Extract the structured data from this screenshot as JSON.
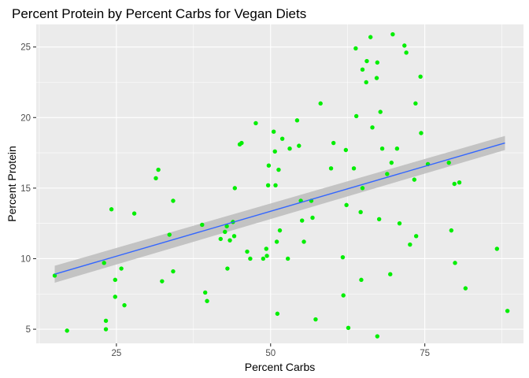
{
  "chart_data": {
    "type": "scatter",
    "title": "Percent Protein by Percent Carbs for Vegan Diets",
    "xlabel": "Percent Carbs",
    "ylabel": "Percent Protein",
    "xlim": [
      12.0,
      91.0
    ],
    "ylim": [
      4.0,
      26.6
    ],
    "xticks": [
      25,
      50,
      75
    ],
    "yticks": [
      5,
      10,
      15,
      20,
      25
    ],
    "grid": true,
    "legend": "none",
    "point_color": "#00ee00",
    "trend_color": "#3366ff",
    "band_color": "#bcbcbc",
    "panel_color": "#ebebeb",
    "trend": {
      "x": [
        15.0,
        88.0
      ],
      "y": [
        8.9,
        18.2
      ],
      "y_lower": [
        8.3,
        17.7
      ],
      "y_upper": [
        9.5,
        18.7
      ]
    },
    "points": [
      [
        15.0,
        8.8
      ],
      [
        17.0,
        4.9
      ],
      [
        23.0,
        9.7
      ],
      [
        23.3,
        5.6
      ],
      [
        23.3,
        5.0
      ],
      [
        24.2,
        13.5
      ],
      [
        24.8,
        8.5
      ],
      [
        24.8,
        7.3
      ],
      [
        25.8,
        9.3
      ],
      [
        26.3,
        6.7
      ],
      [
        27.9,
        13.2
      ],
      [
        31.4,
        15.7
      ],
      [
        31.8,
        16.3
      ],
      [
        32.4,
        8.4
      ],
      [
        33.6,
        11.7
      ],
      [
        34.2,
        14.1
      ],
      [
        34.2,
        9.1
      ],
      [
        38.9,
        12.4
      ],
      [
        39.4,
        7.6
      ],
      [
        39.7,
        7.0
      ],
      [
        41.9,
        11.4
      ],
      [
        42.6,
        11.9
      ],
      [
        42.9,
        12.3
      ],
      [
        43.0,
        9.3
      ],
      [
        43.4,
        11.3
      ],
      [
        43.9,
        12.6
      ],
      [
        44.1,
        11.6
      ],
      [
        44.2,
        15.0
      ],
      [
        45.0,
        18.1
      ],
      [
        45.3,
        18.2
      ],
      [
        46.2,
        10.5
      ],
      [
        46.7,
        10.0
      ],
      [
        47.6,
        19.6
      ],
      [
        48.8,
        10.0
      ],
      [
        49.3,
        10.7
      ],
      [
        49.4,
        10.2
      ],
      [
        49.6,
        15.2
      ],
      [
        49.7,
        16.6
      ],
      [
        50.5,
        19.0
      ],
      [
        50.7,
        17.6
      ],
      [
        50.8,
        15.2
      ],
      [
        51.0,
        11.2
      ],
      [
        51.1,
        6.1
      ],
      [
        51.3,
        16.3
      ],
      [
        51.5,
        12.0
      ],
      [
        51.9,
        18.5
      ],
      [
        52.8,
        10.0
      ],
      [
        53.1,
        17.8
      ],
      [
        54.3,
        19.8
      ],
      [
        54.6,
        18.0
      ],
      [
        54.9,
        14.1
      ],
      [
        55.1,
        12.7
      ],
      [
        55.4,
        11.2
      ],
      [
        56.6,
        14.1
      ],
      [
        56.8,
        12.9
      ],
      [
        57.3,
        5.7
      ],
      [
        58.1,
        21.0
      ],
      [
        59.8,
        16.4
      ],
      [
        60.2,
        18.2
      ],
      [
        61.7,
        10.1
      ],
      [
        61.8,
        7.4
      ],
      [
        62.2,
        17.7
      ],
      [
        62.3,
        13.8
      ],
      [
        62.6,
        5.1
      ],
      [
        63.5,
        16.4
      ],
      [
        63.8,
        24.9
      ],
      [
        63.9,
        20.1
      ],
      [
        64.6,
        13.3
      ],
      [
        64.7,
        8.5
      ],
      [
        64.9,
        23.4
      ],
      [
        64.9,
        15.0
      ],
      [
        65.5,
        22.5
      ],
      [
        65.6,
        24.0
      ],
      [
        66.2,
        25.7
      ],
      [
        66.5,
        19.3
      ],
      [
        67.2,
        22.8
      ],
      [
        67.3,
        23.9
      ],
      [
        67.3,
        4.5
      ],
      [
        67.6,
        12.8
      ],
      [
        67.8,
        20.4
      ],
      [
        68.1,
        17.8
      ],
      [
        68.9,
        16.0
      ],
      [
        69.4,
        8.9
      ],
      [
        69.6,
        16.8
      ],
      [
        69.8,
        25.9
      ],
      [
        70.5,
        17.8
      ],
      [
        70.9,
        12.5
      ],
      [
        71.7,
        25.1
      ],
      [
        72.0,
        24.6
      ],
      [
        72.6,
        11.0
      ],
      [
        73.3,
        15.6
      ],
      [
        73.5,
        21.0
      ],
      [
        73.6,
        11.6
      ],
      [
        74.3,
        22.9
      ],
      [
        74.4,
        18.9
      ],
      [
        75.5,
        16.7
      ],
      [
        78.9,
        16.8
      ],
      [
        79.3,
        12.0
      ],
      [
        79.8,
        15.3
      ],
      [
        79.9,
        9.7
      ],
      [
        80.6,
        15.4
      ],
      [
        81.6,
        7.9
      ],
      [
        86.7,
        10.7
      ],
      [
        88.4,
        6.3
      ]
    ]
  }
}
